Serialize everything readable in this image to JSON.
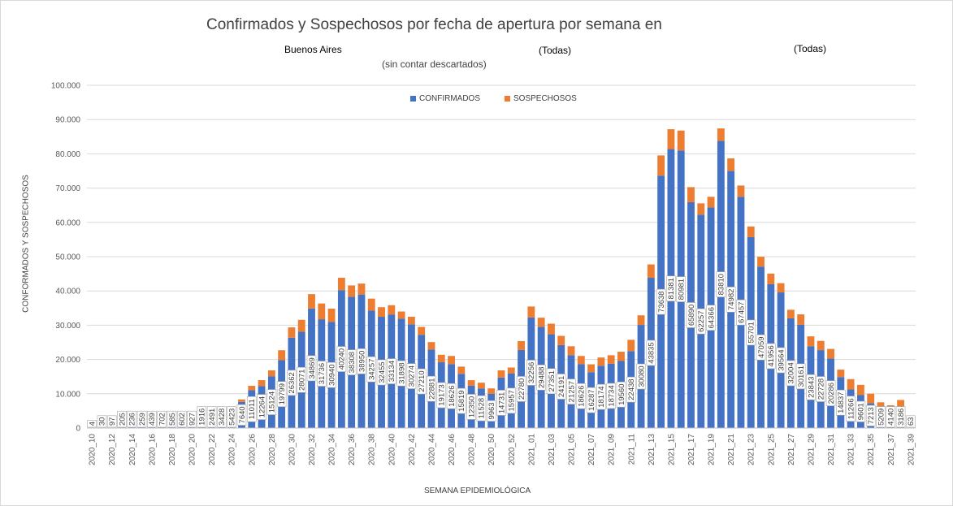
{
  "chart_data": {
    "type": "bar",
    "stacked": true,
    "title": "Confirmados y Sospechosos por fecha de apertura por semana en",
    "filters": [
      {
        "label": "Buenos Aires"
      },
      {
        "label": "(Todas)"
      },
      {
        "label": "(Todas)"
      }
    ],
    "note": "(sin contar descartados)",
    "xlabel": "SEMANA EPIDEMIOLÓGICA",
    "ylabel": "CONFORMADOS Y SOSPECHOSOS",
    "ylim": [
      0,
      100000
    ],
    "yticks": [
      "0",
      "10.000",
      "20.000",
      "30.000",
      "40.000",
      "50.000",
      "60.000",
      "70.000",
      "80.000",
      "90.000",
      "100.000"
    ],
    "legend_position": "top-center",
    "grid": true,
    "colors": {
      "confirmados": "#4472c4",
      "sospechosos": "#ed7d31",
      "grid": "#d9d9d9",
      "text": "#595959"
    },
    "categories": [
      "2020_10",
      "2020_11",
      "2020_12",
      "2020_13",
      "2020_14",
      "2020_15",
      "2020_16",
      "2020_17",
      "2020_18",
      "2020_19",
      "2020_20",
      "2020_21",
      "2020_22",
      "2020_23",
      "2020_24",
      "2020_25",
      "2020_26",
      "2020_27",
      "2020_28",
      "2020_29",
      "2020_30",
      "2020_31",
      "2020_32",
      "2020_33",
      "2020_34",
      "2020_35",
      "2020_36",
      "2020_37",
      "2020_38",
      "2020_39",
      "2020_40",
      "2020_41",
      "2020_42",
      "2020_43",
      "2020_44",
      "2020_45",
      "2020_46",
      "2020_47",
      "2020_48",
      "2020_49",
      "2020_50",
      "2020_51",
      "2020_52",
      "2020_53",
      "2021_01",
      "2021_02",
      "2021_03",
      "2021_04",
      "2021_05",
      "2021_06",
      "2021_07",
      "2021_08",
      "2021_09",
      "2021_10",
      "2021_11",
      "2021_12",
      "2021_13",
      "2021_14",
      "2021_15",
      "2021_16",
      "2021_17",
      "2021_18",
      "2021_19",
      "2021_20",
      "2021_21",
      "2021_22",
      "2021_23",
      "2021_24",
      "2021_25",
      "2021_26",
      "2021_27",
      "2021_28",
      "2021_29",
      "2021_30",
      "2021_31",
      "2021_32",
      "2021_33",
      "2021_34",
      "2021_35",
      "2021_36",
      "2021_37",
      "2021_38",
      "2021_39"
    ],
    "tick_categories": [
      "2020_10",
      "2020_12",
      "2020_14",
      "2020_16",
      "2020_18",
      "2020_20",
      "2020_22",
      "2020_24",
      "2020_26",
      "2020_28",
      "2020_30",
      "2020_32",
      "2020_34",
      "2020_36",
      "2020_38",
      "2020_40",
      "2020_42",
      "2020_44",
      "2020_46",
      "2020_48",
      "2020_50",
      "2020_52",
      "2021_01",
      "2021_03",
      "2021_05",
      "2021_07",
      "2021_09",
      "2021_11",
      "2021_13",
      "2021_15",
      "2021_17",
      "2021_19",
      "2021_21",
      "2021_23",
      "2021_25",
      "2021_27",
      "2021_29",
      "2021_31",
      "2021_33",
      "2021_35",
      "2021_37",
      "2021_39"
    ],
    "series": [
      {
        "name": "CONFIRMADOS",
        "values": [
          4,
          30,
          97,
          205,
          236,
          259,
          439,
          702,
          585,
          602,
          927,
          1916,
          2491,
          3428,
          5423,
          7640,
          11011,
          12264,
          15124,
          19799,
          26362,
          28071,
          34869,
          31736,
          30940,
          40240,
          38308,
          38950,
          34257,
          32455,
          33134,
          31898,
          30274,
          27210,
          22881,
          19173,
          18626,
          15819,
          12350,
          11528,
          9963,
          14731,
          15957,
          22780,
          32256,
          29488,
          27351,
          24191,
          21257,
          18626,
          16287,
          18174,
          18734,
          19560,
          22438,
          30080,
          43835,
          73638,
          81381,
          80981,
          65890,
          62257,
          64366,
          83810,
          74982,
          67457,
          55701,
          47059,
          41956,
          39564,
          32004,
          30161,
          23843,
          22728,
          20286,
          14837,
          11266,
          9601,
          7213,
          5209,
          4140,
          3186,
          63
        ]
      },
      {
        "name": "SOSPECHOSOS",
        "values": [
          0,
          0,
          0,
          0,
          0,
          0,
          0,
          0,
          0,
          0,
          0,
          0,
          0,
          200,
          400,
          700,
          1300,
          1700,
          1700,
          2900,
          3000,
          3500,
          4200,
          4600,
          3900,
          3600,
          3300,
          3200,
          3500,
          2800,
          2700,
          2100,
          2200,
          2300,
          2200,
          2200,
          2400,
          2100,
          1600,
          1700,
          1600,
          2100,
          1700,
          2600,
          3200,
          2700,
          3100,
          2700,
          2600,
          2400,
          2300,
          2400,
          2500,
          2700,
          3300,
          2800,
          3900,
          5900,
          5800,
          5800,
          4400,
          3300,
          3100,
          3600,
          3700,
          3300,
          3100,
          2900,
          3100,
          2700,
          2500,
          3000,
          2900,
          2700,
          2800,
          2200,
          3000,
          3000,
          2800,
          2300,
          2500,
          5000,
          0
        ]
      }
    ],
    "data_labels": [
      "4",
      "30",
      "97",
      "205",
      "236",
      "259",
      "439",
      "702",
      "585",
      "602",
      "927",
      "1916",
      "2491",
      "3428",
      "5423",
      "7640",
      "11011",
      "12264",
      "15124",
      "19799",
      "26362",
      "28071",
      "34869",
      "31736",
      "30940",
      "40240",
      "38308",
      "38950",
      "34257",
      "32455",
      "33134",
      "31898",
      "30274",
      "27210",
      "22881",
      "19173",
      "18626",
      "15819",
      "12350",
      "11528",
      "9963",
      "14731",
      "15957",
      "22780",
      "32256",
      "29488",
      "27351",
      "24191",
      "21257",
      "18626",
      "16287",
      "18174",
      "18734",
      "19560",
      "22438",
      "30080",
      "43835",
      "73638",
      "81381",
      "80981",
      "65890",
      "62257",
      "64366",
      "83810",
      "74982",
      "67457",
      "55701",
      "47059",
      "41956",
      "39564",
      "32004",
      "30161",
      "23843",
      "22728",
      "20286",
      "14837",
      "11266",
      "9601",
      "7213",
      "5209",
      "4140",
      "3186",
      "63"
    ]
  }
}
